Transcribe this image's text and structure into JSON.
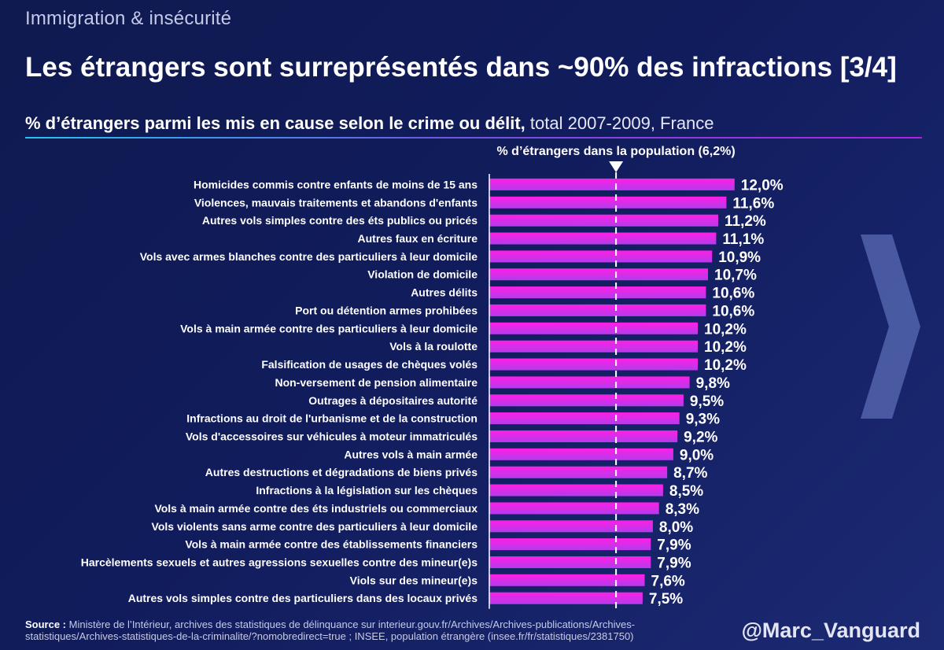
{
  "kicker": "Immigration & insécurité",
  "headline": "Les étrangers sont surreprésentés dans ~90% des infractions [3/4]",
  "subtitle": {
    "bold": "% d’étrangers parmi les mis en cause selon le crime ou délit,",
    "light": " total 2007-2009, France"
  },
  "colors": {
    "bar_top": "#ff1ee6",
    "bar_bottom": "#b23ceb",
    "background": "#111c5c",
    "rule_start": "#22c4ef",
    "rule_end": "#b21ee0"
  },
  "chart_data": {
    "type": "bar",
    "orientation": "horizontal",
    "title": "% d’étrangers parmi les mis en cause selon le crime ou délit, total 2007-2009, France",
    "xlabel": "",
    "ylabel": "",
    "xlim": [
      0,
      12.7
    ],
    "value_suffix": "%",
    "decimal_separator": ",",
    "categories": [
      "Homicides commis contre enfants de moins de 15 ans",
      "Violences, mauvais traitements et abandons d'enfants",
      "Autres vols simples contre des éts publics ou pricés",
      "Autres faux en écriture",
      "Vols avec armes blanches contre des particuliers à leur domicile",
      "Violation de domicile",
      "Autres délits",
      "Port ou détention armes prohibées",
      "Vols à main armée contre des particuliers à leur domicile",
      "Vols à la roulotte",
      "Falsification de usages de chèques volés",
      "Non-versement de pension alimentaire",
      "Outrages à dépositaires autorité",
      "Infractions au droit de l'urbanisme et de la construction",
      "Vols d'accessoires sur véhicules à moteur immatriculés",
      "Autres vols à main armée",
      "Autres destructions et dégradations de biens privés",
      "Infractions à la législation sur les chèques",
      "Vols à main armée contre des éts industriels ou commerciaux",
      "Vols violents sans arme contre des particuliers à leur domicile",
      "Vols à main armée contre des établissements financiers",
      "Harcèlements sexuels et autres agressions sexuelles contre des mineur(e)s",
      "Viols sur des mineur(e)s",
      "Autres vols simples contre des particuliers dans des locaux privés"
    ],
    "values": [
      12.0,
      11.6,
      11.2,
      11.1,
      10.9,
      10.7,
      10.6,
      10.6,
      10.2,
      10.2,
      10.2,
      9.8,
      9.5,
      9.3,
      9.2,
      9.0,
      8.7,
      8.5,
      8.3,
      8.0,
      7.9,
      7.9,
      7.6,
      7.5
    ],
    "value_labels": [
      "12,0%",
      "11,6%",
      "11,2%",
      "11,1%",
      "10,9%",
      "10,7%",
      "10,6%",
      "10,6%",
      "10,2%",
      "10,2%",
      "10,2%",
      "9,8%",
      "9,5%",
      "9,3%",
      "9,2%",
      "9,0%",
      "8,7%",
      "8,5%",
      "8,3%",
      "8,0%",
      "7,9%",
      "7,9%",
      "7,6%",
      "7,5%"
    ],
    "reference_line": {
      "value": 6.2,
      "label": "% d’étrangers dans la population (6,2%)",
      "style": "dashed"
    },
    "grid": false,
    "legend": "none"
  },
  "source": {
    "label": "Source :",
    "text": " Ministère de l’Intérieur, archives des statistiques de délinquance sur interieur.gouv.fr/Archives/Archives-publications/Archives-statistiques/Archives-statistiques-de-la-criminalite/?nomobredirect=true ; INSEE, population étrangère (insee.fr/fr/statistiques/2381750)"
  },
  "handle": "@Marc_Vanguard",
  "icons": {
    "next": "chevron-right-icon",
    "reference_marker": "triangle-down-icon"
  }
}
